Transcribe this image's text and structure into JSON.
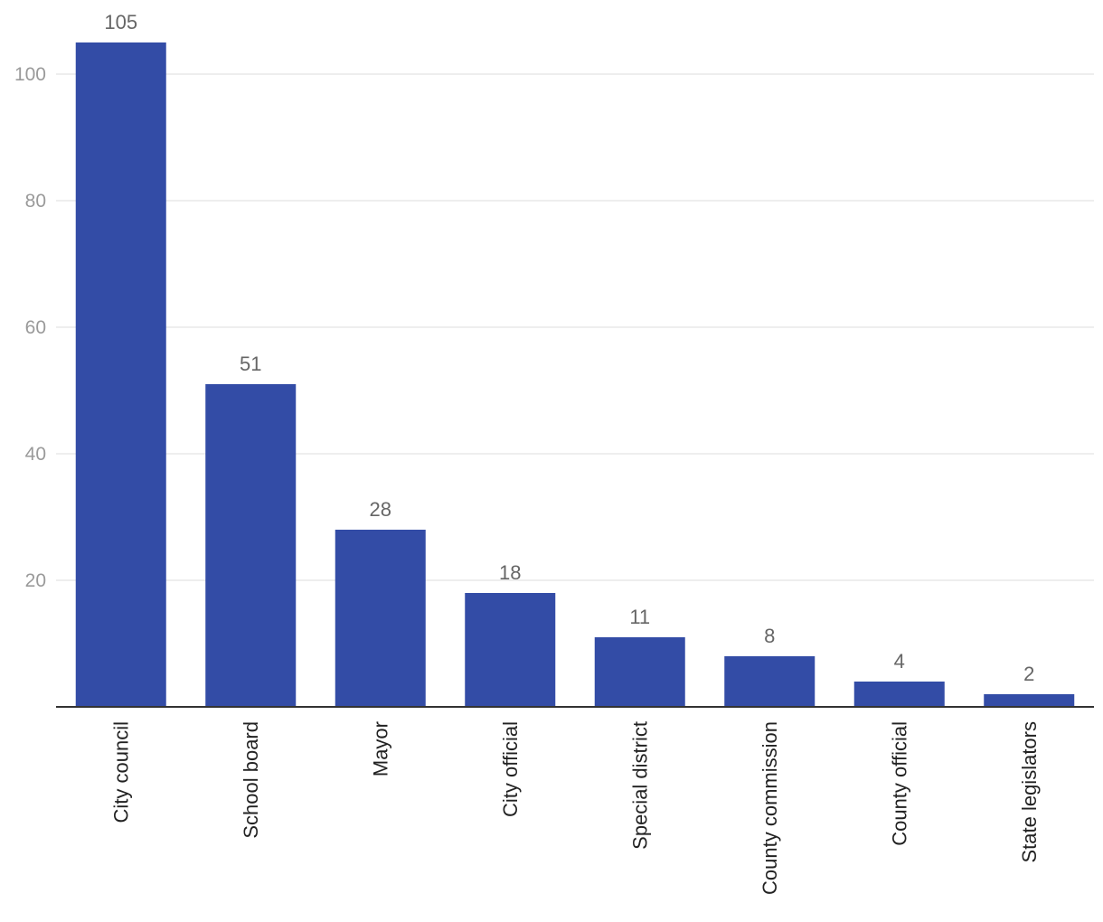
{
  "chart_data": {
    "type": "bar",
    "categories": [
      "City council",
      "School board",
      "Mayor",
      "City official",
      "Special district",
      "County commission",
      "County official",
      "State legislators"
    ],
    "values": [
      105,
      51,
      28,
      18,
      11,
      8,
      4,
      2
    ],
    "title": "",
    "xlabel": "",
    "ylabel": "",
    "ylim": [
      0,
      100
    ],
    "yticks": [
      "20",
      "40",
      "60",
      "80",
      "100"
    ],
    "grid": true,
    "data_labels": true,
    "legend": "none",
    "colors": {
      "bar": "#334ca6",
      "grid": "#dcdcdc",
      "baseline": "#333333",
      "tick_text": "#9a9a9a",
      "data_label_text": "#666666",
      "category_text": "#222222"
    }
  }
}
